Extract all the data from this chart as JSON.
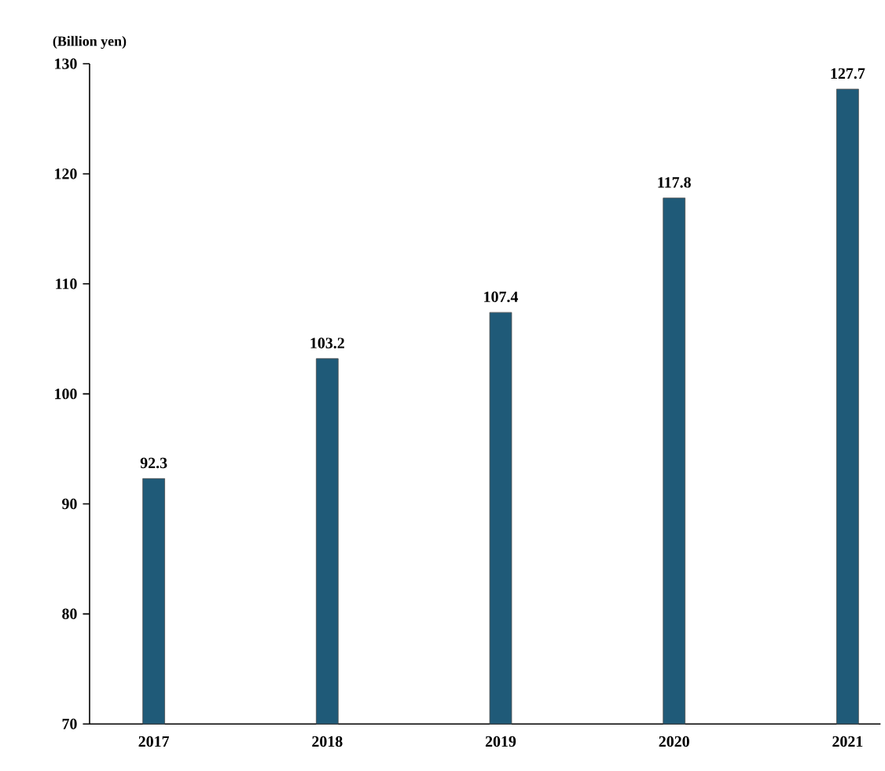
{
  "chart_data": {
    "type": "bar",
    "ylabel": "(Billion yen)",
    "categories": [
      "2017",
      "2018",
      "2019",
      "2020",
      "2021"
    ],
    "values": [
      92.3,
      103.2,
      107.4,
      117.8,
      127.7
    ],
    "color": "#1f5a78",
    "ylim": [
      70,
      130
    ],
    "yticks": [
      70,
      80,
      90,
      100,
      110,
      120,
      130
    ],
    "data_labels": true
  }
}
